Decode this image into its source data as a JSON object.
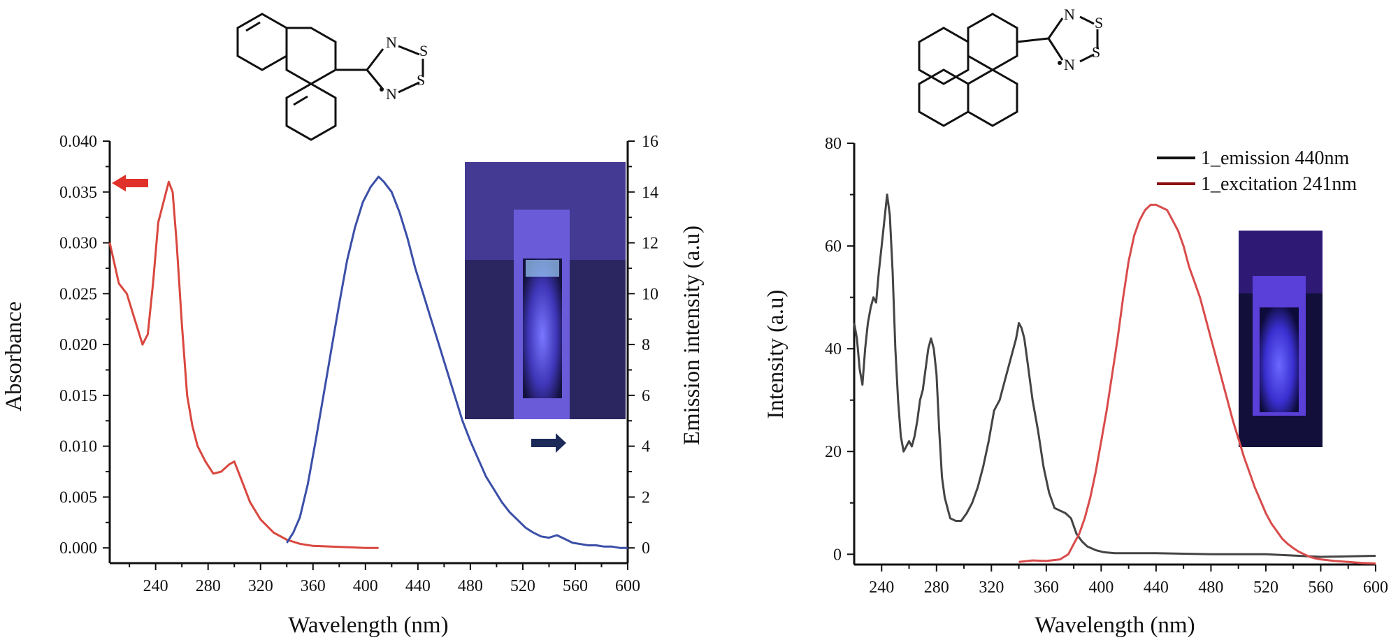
{
  "chart_data": [
    {
      "type": "line",
      "title": "",
      "xlabel": "Wavelength (nm)",
      "ylabel": "Absorbance",
      "ylabel_right": "Emission intensity (a.u)",
      "xlim": [
        205,
        600
      ],
      "ylim": [
        -0.0015,
        0.04
      ],
      "ylim_right": [
        -0.6,
        16
      ],
      "x_ticks": [
        "240",
        "280",
        "320",
        "360",
        "400",
        "440",
        "480",
        "520",
        "560",
        "600"
      ],
      "y_ticks": [
        "0.000",
        "0.005",
        "0.010",
        "0.015",
        "0.020",
        "0.025",
        "0.030",
        "0.035",
        "0.040"
      ],
      "y_ticks_right": [
        "0",
        "2",
        "4",
        "6",
        "8",
        "10",
        "12",
        "14",
        "16"
      ],
      "molecule_labels": [
        "N",
        "S",
        "S",
        "N"
      ],
      "series": [
        {
          "name": "Absorbance",
          "axis": "left",
          "color": "#d9473f",
          "x": [
            205,
            212,
            218,
            224,
            230,
            234,
            238,
            242,
            246,
            250,
            253,
            256,
            260,
            264,
            268,
            272,
            278,
            284,
            290,
            296,
            300,
            306,
            312,
            320,
            330,
            340,
            350,
            360,
            380,
            400,
            410
          ],
          "y": [
            0.03,
            0.026,
            0.025,
            0.0225,
            0.02,
            0.021,
            0.026,
            0.032,
            0.034,
            0.036,
            0.035,
            0.03,
            0.022,
            0.015,
            0.012,
            0.01,
            0.0085,
            0.0073,
            0.0075,
            0.0082,
            0.0085,
            0.0065,
            0.0045,
            0.0028,
            0.0015,
            0.0008,
            0.0004,
            0.0002,
            0.0001,
            0.0,
            0.0
          ]
        },
        {
          "name": "Emission",
          "axis": "right",
          "color": "#3b4fa8",
          "x": [
            340,
            345,
            350,
            356,
            362,
            368,
            374,
            380,
            386,
            392,
            398,
            404,
            410,
            414,
            420,
            426,
            432,
            438,
            444,
            450,
            456,
            462,
            468,
            474,
            480,
            486,
            492,
            498,
            504,
            510,
            516,
            522,
            528,
            534,
            540,
            546,
            552,
            558,
            564,
            570,
            576,
            582,
            588,
            594,
            600
          ],
          "y": [
            0.2,
            0.6,
            1.2,
            2.5,
            4.2,
            6.0,
            7.8,
            9.6,
            11.3,
            12.6,
            13.6,
            14.2,
            14.6,
            14.4,
            14.0,
            13.2,
            12.2,
            11.0,
            10.0,
            9.0,
            8.0,
            7.0,
            6.0,
            5.0,
            4.2,
            3.5,
            2.8,
            2.3,
            1.8,
            1.4,
            1.1,
            0.8,
            0.6,
            0.45,
            0.4,
            0.5,
            0.35,
            0.2,
            0.15,
            0.1,
            0.1,
            0.05,
            0.05,
            0.0,
            0.0
          ]
        }
      ]
    },
    {
      "type": "line",
      "title": "",
      "xlabel": "Wavelength (nm)",
      "ylabel": "Intensity (a.u)",
      "xlim": [
        220,
        600
      ],
      "ylim": [
        -2,
        80
      ],
      "x_ticks": [
        "240",
        "280",
        "320",
        "360",
        "400",
        "440",
        "480",
        "520",
        "560",
        "600"
      ],
      "y_ticks": [
        "0",
        "20",
        "40",
        "60",
        "80"
      ],
      "molecule_labels": [
        "N",
        "S",
        "S",
        "N"
      ],
      "legend": [
        "1_emission 440nm",
        "1_excitation 241nm"
      ],
      "series": [
        {
          "name": "1_emission 440nm",
          "color": "#444444",
          "x": [
            220,
            222,
            224,
            226,
            228,
            230,
            232,
            234,
            236,
            238,
            240,
            242,
            244,
            246,
            248,
            250,
            252,
            254,
            256,
            258,
            260,
            262,
            264,
            266,
            268,
            270,
            272,
            274,
            276,
            278,
            280,
            282,
            284,
            286,
            288,
            290,
            294,
            298,
            302,
            306,
            310,
            314,
            318,
            322,
            326,
            330,
            334,
            338,
            340,
            342,
            344,
            346,
            348,
            350,
            354,
            358,
            362,
            366,
            370,
            374,
            378,
            382,
            386,
            390,
            396,
            402,
            410,
            420,
            440,
            480,
            520,
            560,
            600
          ],
          "y": [
            45,
            42,
            36,
            33,
            40,
            45,
            48,
            50,
            49,
            55,
            60,
            65,
            70,
            66,
            55,
            40,
            30,
            23,
            20,
            21,
            22,
            21,
            23,
            26,
            30,
            32,
            36,
            40,
            42,
            40,
            35,
            24,
            15,
            11,
            9,
            7,
            6.5,
            6.5,
            8,
            10,
            13,
            17,
            22,
            28,
            30,
            34,
            38,
            42,
            45,
            44,
            42,
            38,
            34,
            30,
            24,
            17,
            12,
            9,
            8.5,
            8,
            7,
            4,
            2.5,
            1.5,
            0.8,
            0.4,
            0.2,
            0.2,
            0.2,
            0.0,
            0.0,
            -0.5,
            -0.3
          ]
        },
        {
          "name": "1_excitation 241nm",
          "color": "#d94b4b",
          "x": [
            340,
            350,
            360,
            370,
            376,
            380,
            384,
            388,
            392,
            396,
            400,
            404,
            408,
            412,
            416,
            420,
            424,
            428,
            432,
            436,
            440,
            444,
            448,
            452,
            456,
            460,
            464,
            468,
            472,
            476,
            480,
            484,
            488,
            492,
            496,
            500,
            504,
            508,
            512,
            516,
            520,
            524,
            528,
            532,
            536,
            540,
            544,
            548,
            552,
            556,
            560,
            570,
            580,
            590,
            600
          ],
          "y": [
            -1.5,
            -1.2,
            -1.3,
            -1.0,
            0.0,
            2.0,
            4.0,
            7.0,
            11.0,
            16.0,
            22.0,
            28.0,
            35.0,
            42.0,
            50.0,
            57.0,
            62.0,
            65.0,
            67.0,
            68.0,
            68.0,
            67.5,
            67.0,
            65.0,
            63.0,
            60.0,
            56.0,
            53.0,
            50.0,
            46.0,
            42.0,
            38.0,
            34.0,
            30.0,
            26.0,
            22.5,
            19.0,
            16.0,
            13.0,
            10.5,
            8.0,
            6.0,
            4.5,
            3.0,
            2.0,
            1.2,
            0.5,
            0.0,
            -0.5,
            -0.8,
            -1.0,
            -1.3,
            -1.5,
            -1.7,
            -1.8
          ]
        }
      ]
    }
  ]
}
